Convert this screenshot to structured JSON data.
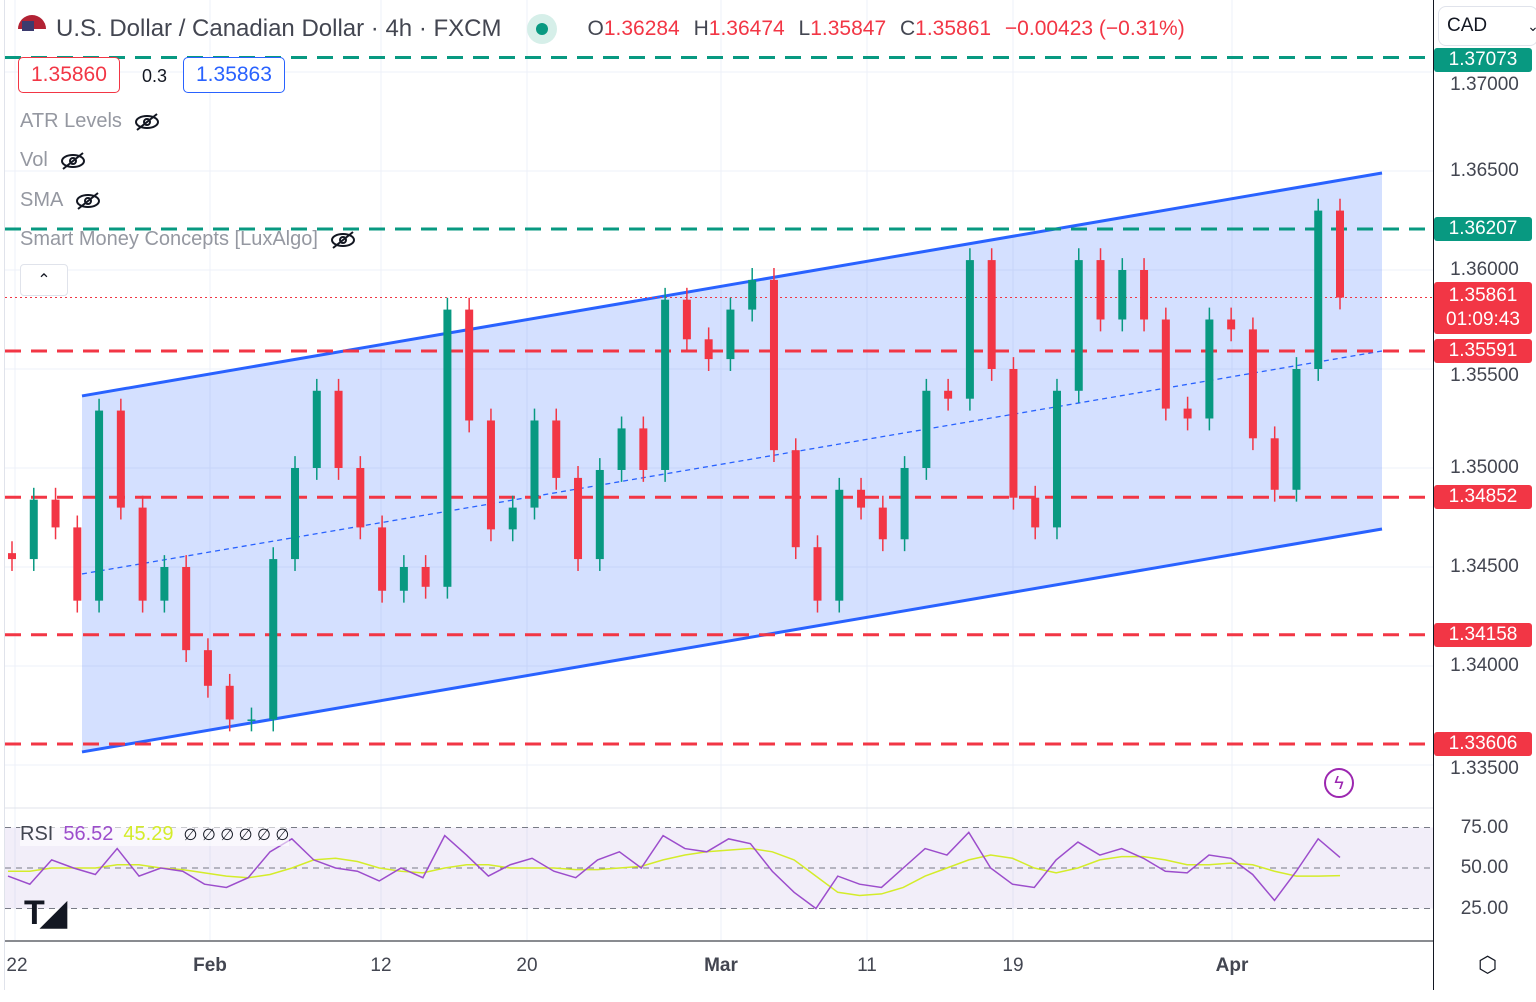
{
  "header": {
    "title": "U.S. Dollar / Canadian Dollar · 4h · FXCM",
    "o_label": "O",
    "o": "1.36284",
    "h_label": "H",
    "h": "1.36474",
    "l_label": "L",
    "l": "1.35847",
    "c_label": "C",
    "c": "1.35861",
    "change": "−0.00423 (−0.31%)",
    "status_color": "#089981"
  },
  "quote": {
    "bid": "1.35860",
    "spread": "0.3",
    "ask": "1.35863"
  },
  "indicators": [
    {
      "label": "ATR Levels"
    },
    {
      "label": "Vol"
    },
    {
      "label": "SMA"
    },
    {
      "label": "Smart Money Concepts [LuxAlgo]"
    }
  ],
  "currency_select": "CAD",
  "rsi_legend": {
    "label": "RSI",
    "value": "56.52",
    "ma": "45.29",
    "na": "∅ ∅ ∅ ∅ ∅ ∅"
  },
  "colors": {
    "up": "#089981",
    "down": "#f23645",
    "channel": "#2962ff",
    "rsi": "#9c4dcc",
    "rsi_ma": "#d4ec2a"
  },
  "chart_data": {
    "type": "candlestick",
    "x_ticks": [
      "22",
      "Feb",
      "12",
      "20",
      "Mar",
      "11",
      "19",
      "Apr"
    ],
    "y_ticks": [
      "1.37000",
      "1.36500",
      "1.36000",
      "1.35500",
      "1.35000",
      "1.34500",
      "1.34000",
      "1.33500"
    ],
    "ylim": [
      1.3335,
      1.372
    ],
    "closes": [
      1.3454,
      1.3484,
      1.347,
      1.3433,
      1.3529,
      1.348,
      1.3433,
      1.345,
      1.3408,
      1.339,
      1.3373,
      1.3373,
      1.3454,
      1.35,
      1.3539,
      1.35,
      1.347,
      1.3438,
      1.345,
      1.344,
      1.358,
      1.3524,
      1.3469,
      1.348,
      1.3524,
      1.3495,
      1.3454,
      1.3499,
      1.352,
      1.3499,
      1.3585,
      1.3565,
      1.3555,
      1.358,
      1.3595,
      1.3509,
      1.346,
      1.3433,
      1.3489,
      1.348,
      1.3464,
      1.35,
      1.3539,
      1.3535,
      1.3605,
      1.355,
      1.3485,
      1.347,
      1.3539,
      1.3605,
      1.3575,
      1.36,
      1.3575,
      1.353,
      1.3525,
      1.3575,
      1.357,
      1.3515,
      1.3489,
      1.355,
      1.363,
      1.35861
    ],
    "levels": [
      {
        "price": 1.37073,
        "label": "1.37073",
        "color": "#089981"
      },
      {
        "price": 1.36207,
        "label": "1.36207",
        "color": "#089981"
      },
      {
        "price": 1.35591,
        "label": "1.35591",
        "color": "#f23645"
      },
      {
        "price": 1.34852,
        "label": "1.34852",
        "color": "#f23645"
      },
      {
        "price": 1.34158,
        "label": "1.34158",
        "color": "#f23645"
      },
      {
        "price": 1.33606,
        "label": "1.33606",
        "color": "#f23645"
      }
    ],
    "last_price": {
      "price": 1.35861,
      "label": "1.35861",
      "countdown": "01:09:43"
    },
    "channel": {
      "upper": [
        1.35364,
        1.3649
      ],
      "lower": [
        1.33566,
        1.34692
      ]
    },
    "rsi": {
      "ylim": [
        0,
        100
      ],
      "ticks": [
        "75.00",
        "50.00",
        "25.00"
      ],
      "bands": [
        75,
        50,
        25
      ],
      "values": [
        45,
        40,
        55,
        50,
        46,
        62,
        45,
        50,
        48,
        40,
        38,
        44,
        60,
        68,
        55,
        50,
        48,
        42,
        50,
        44,
        70,
        58,
        45,
        52,
        56,
        48,
        44,
        55,
        60,
        50,
        70,
        62,
        60,
        68,
        65,
        48,
        35,
        25,
        45,
        40,
        38,
        50,
        62,
        58,
        72,
        50,
        40,
        38,
        55,
        66,
        58,
        62,
        56,
        48,
        47,
        58,
        56,
        46,
        30,
        48,
        68,
        56.52
      ],
      "ma": [
        48,
        48,
        50,
        50,
        50,
        52,
        52,
        50,
        49,
        47,
        45,
        44,
        46,
        50,
        55,
        56,
        54,
        50,
        48,
        47,
        50,
        52,
        52,
        50,
        50,
        50,
        49,
        49,
        50,
        51,
        55,
        58,
        60,
        61,
        62,
        60,
        55,
        45,
        35,
        33,
        34,
        38,
        45,
        50,
        55,
        58,
        56,
        50,
        47,
        50,
        55,
        57,
        57,
        55,
        52,
        52,
        53,
        52,
        48,
        45,
        45,
        45.29
      ]
    }
  }
}
